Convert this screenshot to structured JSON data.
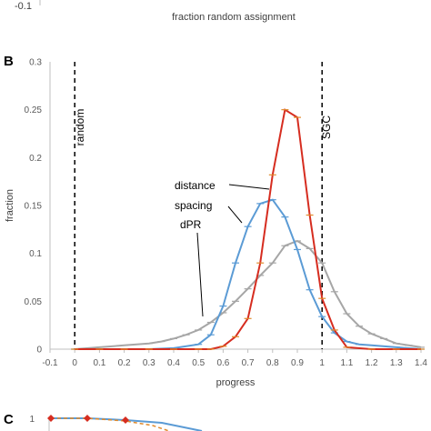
{
  "top_panel": {
    "tick_label": "-0.1",
    "xlabel": "fraction random assignment"
  },
  "panel_c": {
    "letter": "C",
    "tick_label": "1"
  },
  "chart_data": {
    "type": "line",
    "panel": "B",
    "xlabel": "progress",
    "ylabel": "fraction",
    "xlim": [
      -0.1,
      1.4
    ],
    "ylim": [
      0,
      0.3
    ],
    "x_ticks": [
      "-0.1",
      "0",
      "0.1",
      "0.2",
      "0.3",
      "0.4",
      "0.5",
      "0.6",
      "0.7",
      "0.8",
      "0.9",
      "1",
      "1.1",
      "1.2",
      "1.3",
      "1.4"
    ],
    "y_ticks": [
      "0",
      "0.05",
      "0.1",
      "0.15",
      "0.2",
      "0.25",
      "0.3"
    ],
    "grid": false,
    "reference_lines": [
      {
        "label": "random",
        "x": 0
      },
      {
        "label": "SGC",
        "x": 1
      }
    ],
    "annotations": [
      "distance",
      "spacing",
      "dPR"
    ],
    "series": [
      {
        "color": "#d62d20",
        "marker_color": "#e08a2c",
        "x": [
          0,
          0.1,
          0.2,
          0.3,
          0.4,
          0.5,
          0.55,
          0.6,
          0.65,
          0.7,
          0.75,
          0.8,
          0.85,
          0.9,
          0.95,
          1.0,
          1.05,
          1.1,
          1.2,
          1.3,
          1.4
        ],
        "y": [
          0,
          0,
          0,
          0,
          0,
          0,
          0,
          0.003,
          0.013,
          0.032,
          0.09,
          0.182,
          0.25,
          0.242,
          0.14,
          0.053,
          0.02,
          0.002,
          0,
          0,
          0
        ]
      },
      {
        "color": "#5b9bd5",
        "marker_color": "#5b9bd5",
        "x": [
          0,
          0.1,
          0.2,
          0.3,
          0.4,
          0.5,
          0.55,
          0.6,
          0.65,
          0.7,
          0.75,
          0.8,
          0.85,
          0.9,
          0.95,
          1.0,
          1.05,
          1.1,
          1.15,
          1.2,
          1.3,
          1.4
        ],
        "y": [
          0,
          0,
          0,
          0,
          0.001,
          0.005,
          0.015,
          0.045,
          0.09,
          0.128,
          0.152,
          0.156,
          0.138,
          0.104,
          0.062,
          0.034,
          0.017,
          0.008,
          0.005,
          0.004,
          0.002,
          0
        ]
      },
      {
        "color": "#a6a6a6",
        "marker_color": "#a6a6a6",
        "x": [
          0,
          0.1,
          0.2,
          0.3,
          0.35,
          0.4,
          0.45,
          0.5,
          0.55,
          0.6,
          0.65,
          0.7,
          0.75,
          0.8,
          0.85,
          0.9,
          0.95,
          1.0,
          1.05,
          1.1,
          1.15,
          1.2,
          1.25,
          1.3,
          1.35,
          1.4
        ],
        "y": [
          0,
          0.002,
          0.004,
          0.006,
          0.008,
          0.011,
          0.015,
          0.02,
          0.028,
          0.038,
          0.05,
          0.063,
          0.077,
          0.09,
          0.108,
          0.113,
          0.105,
          0.09,
          0.06,
          0.037,
          0.024,
          0.016,
          0.011,
          0.006,
          0.004,
          0.002
        ]
      }
    ]
  },
  "panel_b_letter": "B"
}
